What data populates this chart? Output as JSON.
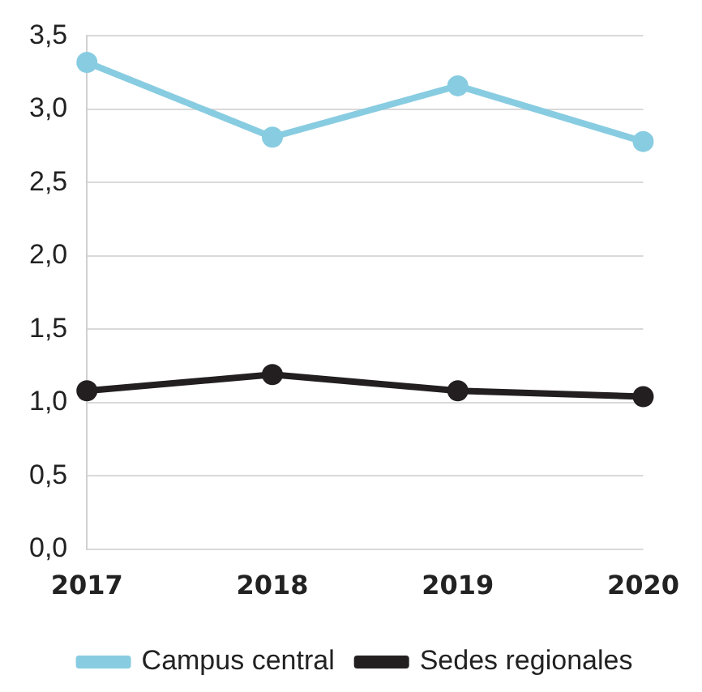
{
  "chart_data": {
    "type": "line",
    "categories": [
      "2017",
      "2018",
      "2019",
      "2020"
    ],
    "series": [
      {
        "name": "Campus central",
        "color": "#88cce1",
        "values": [
          3.32,
          2.81,
          3.16,
          2.78
        ]
      },
      {
        "name": "Sedes regionales",
        "color": "#231f20",
        "values": [
          1.08,
          1.19,
          1.08,
          1.04
        ]
      }
    ],
    "ylim": [
      0,
      3.5
    ],
    "yticks": [
      {
        "value": 0,
        "label": "0,0"
      },
      {
        "value": 0.5,
        "label": "0,5"
      },
      {
        "value": 1,
        "label": "1,0"
      },
      {
        "value": 1.5,
        "label": "1,5"
      },
      {
        "value": 2,
        "label": "2,0"
      },
      {
        "value": 2.5,
        "label": "2,5"
      },
      {
        "value": 3,
        "label": "3,0"
      },
      {
        "value": 3.5,
        "label": "3,5"
      }
    ],
    "grid": "y",
    "legend": "bottom",
    "marker": "circle",
    "line_style": "solid"
  }
}
